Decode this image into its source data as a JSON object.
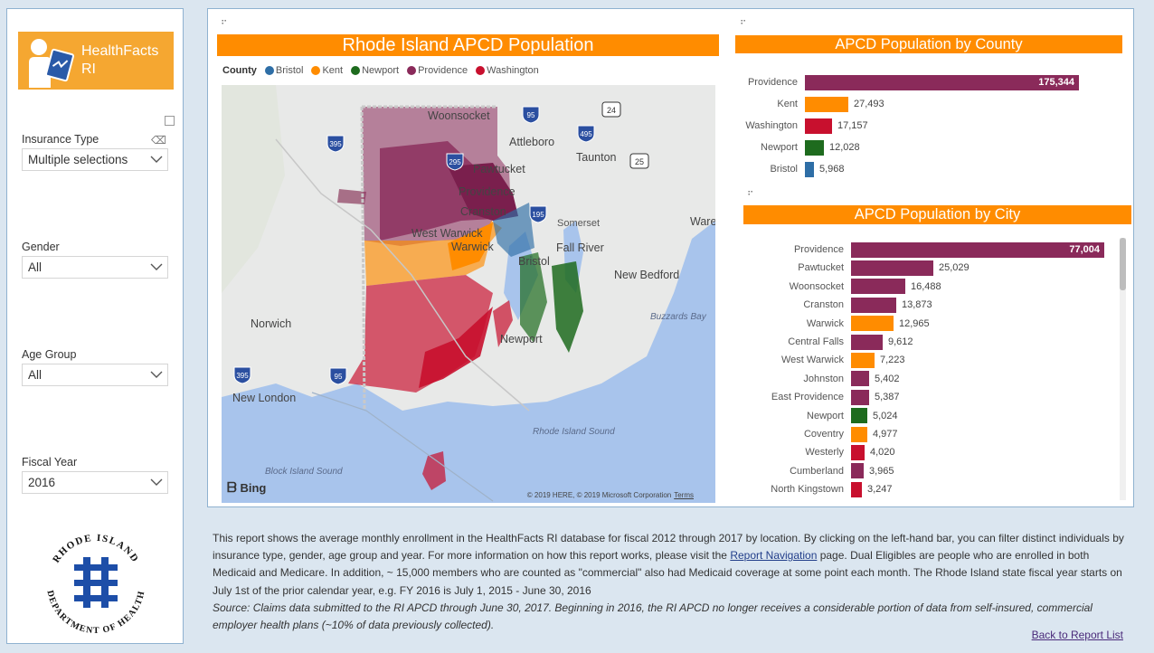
{
  "sidebar": {
    "logo_text_line1": "HealthFacts",
    "logo_text_line2": "RI",
    "slicers": [
      {
        "label": "Insurance Type",
        "value": "Multiple selections"
      },
      {
        "label": "Gender",
        "value": "All"
      },
      {
        "label": "Age Group",
        "value": "All"
      },
      {
        "label": "Fiscal Year",
        "value": "2016"
      }
    ],
    "seal_text_top": "RHODE ISLAND",
    "seal_text_bottom": "DEPARTMENT OF HEALTH"
  },
  "map": {
    "title": "Rhode Island APCD Population",
    "legend_title": "County",
    "legend": [
      {
        "name": "Bristol",
        "color": "#2e6ea6"
      },
      {
        "name": "Kent",
        "color": "#ff8c00"
      },
      {
        "name": "Newport",
        "color": "#1e6b1e"
      },
      {
        "name": "Providence",
        "color": "#8a2a5a"
      },
      {
        "name": "Washington",
        "color": "#c8102e"
      }
    ],
    "places": {
      "woonsocket": "Woonsocket",
      "attleboro": "Attleboro",
      "taunton": "Taunton",
      "pawtucket": "Pawtucket",
      "providence": "Providence",
      "cranston": "Cranston",
      "somerset": "Somerset",
      "ware": "Ware",
      "west_warwick": "West Warwick",
      "warwick": "Warwick",
      "fall_river": "Fall River",
      "bristol": "Bristol",
      "new_bedford": "New Bedford",
      "norwich": "Norwich",
      "buzzards_bay": "Buzzards Bay",
      "newport": "Newport",
      "new_london": "New London",
      "ri_sound": "Rhode Island Sound",
      "bi_sound": "Block Island Sound"
    },
    "shields": {
      "i295": "295",
      "i95a": "95",
      "i495": "495",
      "i395a": "395",
      "i395b": "395",
      "i195": "195",
      "i95b": "95",
      "r24": "24",
      "r25": "25"
    },
    "bing": "Bing",
    "copyright": "© 2019 HERE, © 2019 Microsoft Corporation",
    "terms": "Terms"
  },
  "county_chart": {
    "title": "APCD Population by County",
    "type": "bar",
    "categories": [
      "Providence",
      "Kent",
      "Washington",
      "Newport",
      "Bristol"
    ],
    "values": [
      175344,
      27493,
      17157,
      12028,
      5968
    ],
    "labels": [
      "175,344",
      "27,493",
      "17,157",
      "12,028",
      "5,968"
    ],
    "colors": [
      "#8a2a5a",
      "#ff8c00",
      "#c8102e",
      "#1e6b1e",
      "#2e6ea6"
    ]
  },
  "city_chart": {
    "title": "APCD Population by City",
    "type": "bar",
    "categories": [
      "Providence",
      "Pawtucket",
      "Woonsocket",
      "Cranston",
      "Warwick",
      "Central Falls",
      "West Warwick",
      "Johnston",
      "East Providence",
      "Newport",
      "Coventry",
      "Westerly",
      "Cumberland",
      "North Kingstown"
    ],
    "values": [
      77004,
      25029,
      16488,
      13873,
      12965,
      9612,
      7223,
      5402,
      5387,
      5024,
      4977,
      4020,
      3965,
      3247
    ],
    "labels": [
      "77,004",
      "25,029",
      "16,488",
      "13,873",
      "12,965",
      "9,612",
      "7,223",
      "5,402",
      "5,387",
      "5,024",
      "4,977",
      "4,020",
      "3,965",
      "3,247"
    ],
    "colors": [
      "#8a2a5a",
      "#8a2a5a",
      "#8a2a5a",
      "#8a2a5a",
      "#ff8c00",
      "#8a2a5a",
      "#ff8c00",
      "#8a2a5a",
      "#8a2a5a",
      "#1e6b1e",
      "#ff8c00",
      "#c8102e",
      "#8a2a5a",
      "#c8102e"
    ]
  },
  "chart_data": [
    {
      "type": "bar",
      "title": "APCD Population by County",
      "categories": [
        "Providence",
        "Kent",
        "Washington",
        "Newport",
        "Bristol"
      ],
      "values": [
        175344,
        27493,
        17157,
        12028,
        5968
      ]
    },
    {
      "type": "bar",
      "title": "APCD Population by City",
      "categories": [
        "Providence",
        "Pawtucket",
        "Woonsocket",
        "Cranston",
        "Warwick",
        "Central Falls",
        "West Warwick",
        "Johnston",
        "East Providence",
        "Newport",
        "Coventry",
        "Westerly",
        "Cumberland",
        "North Kingstown"
      ],
      "values": [
        77004,
        25029,
        16488,
        13873,
        12965,
        9612,
        7223,
        5402,
        5387,
        5024,
        4977,
        4020,
        3965,
        3247
      ]
    }
  ],
  "description": {
    "text1": "This report shows the average monthly enrollment in the HealthFacts RI database for fiscal 2012 through 2017 by location. By clicking on the left-hand bar, you can filter distinct individuals by insurance type, gender, age group and year. For more information on how this report works, please visit the ",
    "link": "Report Navigation",
    "text2": " page. Dual Eligibles are people who are enrolled in both Medicaid and Medicare. In addition, ~ 15,000 members who are counted as \"commercial\" also had Medicaid coverage at some point each month. The Rhode Island state fiscal year starts on July 1st of the prior calendar year, e.g. FY 2016 is July 1, 2015 - June 30, 2016",
    "source": "Source: Claims data submitted to the RI APCD through June 30, 2017. Beginning in 2016, the RI APCD no longer receives a considerable portion of data from self-insured, commercial employer health plans (~10% of data previously collected).",
    "back_link": "Back to Report List"
  }
}
